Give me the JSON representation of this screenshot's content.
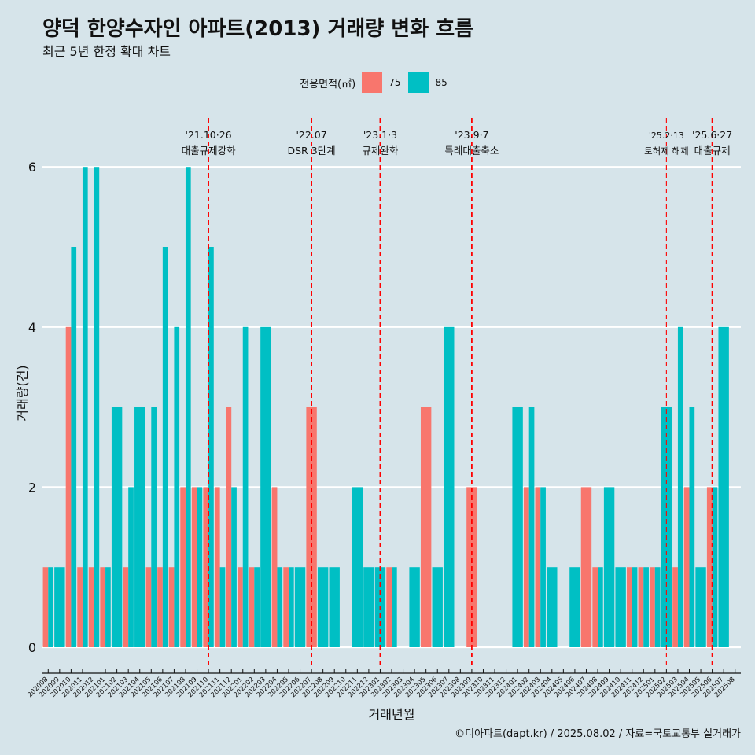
{
  "header": {
    "title": "양덕 한양수자인 아파트(2013) 거래량 변화 흐름",
    "subtitle": "최근 5년 한정 확대 차트"
  },
  "legend": {
    "title": "전용면적(㎡)",
    "items": [
      {
        "label": "75",
        "color": "#F8766D"
      },
      {
        "label": "85",
        "color": "#00BFC4"
      }
    ]
  },
  "caption": "©디아파트(dapt.kr) / 2025.08.02 / 자료=국토교통부 실거래가",
  "chart_data": {
    "type": "bar",
    "title": "양덕 한양수자인 아파트(2013) 거래량 변화 흐름",
    "xlabel": "거래년월",
    "ylabel": "거래량(건)",
    "ylim": [
      0,
      6.5
    ],
    "yticks": [
      0,
      2,
      4,
      6
    ],
    "categories": [
      "202008",
      "202009",
      "202010",
      "202011",
      "202012",
      "202101",
      "202102",
      "202103",
      "202104",
      "202105",
      "202106",
      "202107",
      "202108",
      "202109",
      "202110",
      "202111",
      "202112",
      "202201",
      "202202",
      "202203",
      "202204",
      "202205",
      "202206",
      "202207",
      "202208",
      "202209",
      "202210",
      "202211",
      "202212",
      "202301",
      "202302",
      "202303",
      "202304",
      "202305",
      "202306",
      "202307",
      "202308",
      "202309",
      "202310",
      "202311",
      "202312",
      "202401",
      "202402",
      "202403",
      "202404",
      "202405",
      "202406",
      "202407",
      "202408",
      "202409",
      "202410",
      "202411",
      "202412",
      "202501",
      "202502",
      "202503",
      "202504",
      "202505",
      "202506",
      "202507",
      "202508"
    ],
    "series": [
      {
        "name": "75",
        "color": "#F8766D",
        "values": [
          1,
          0,
          4,
          1,
          1,
          1,
          0,
          1,
          0,
          1,
          1,
          1,
          2,
          2,
          2,
          2,
          3,
          1,
          1,
          0,
          2,
          1,
          0,
          3,
          0,
          0,
          0,
          0,
          0,
          0,
          1,
          0,
          0,
          3,
          0,
          0,
          0,
          2,
          0,
          0,
          0,
          0,
          2,
          2,
          0,
          0,
          0,
          2,
          1,
          0,
          0,
          1,
          1,
          1,
          0,
          1,
          2,
          0,
          2,
          0,
          0
        ]
      },
      {
        "name": "85",
        "color": "#00BFC4",
        "values": [
          1,
          1,
          5,
          6,
          6,
          1,
          3,
          2,
          3,
          3,
          5,
          4,
          6,
          2,
          5,
          1,
          2,
          4,
          1,
          4,
          1,
          1,
          1,
          0,
          1,
          1,
          0,
          2,
          1,
          1,
          1,
          0,
          1,
          0,
          1,
          4,
          0,
          0,
          0,
          0,
          0,
          3,
          3,
          2,
          1,
          0,
          1,
          0,
          1,
          2,
          1,
          1,
          1,
          1,
          3,
          4,
          3,
          1,
          2,
          4,
          0
        ]
      }
    ],
    "annotations": [
      {
        "category": "202110",
        "date_label": "'21.10·26",
        "text": "대출규제강화",
        "style": "bold"
      },
      {
        "category": "202207",
        "date_label": "'22.07",
        "text": "DSR 3단계",
        "style": "bold"
      },
      {
        "category": "202301",
        "date_label": "'23.1·3",
        "text": "규제완화",
        "style": "bold"
      },
      {
        "category": "202309",
        "date_label": "'23.9·7",
        "text": "특례대출축소",
        "style": "bold"
      },
      {
        "category": "202502",
        "date_label": "'25.2·13",
        "text": "토허제 해제",
        "style": "thin"
      },
      {
        "category": "202506",
        "date_label": "'25.6·27",
        "text": "대출규제",
        "style": "bold"
      }
    ],
    "grid": true,
    "legend_position": "top"
  }
}
